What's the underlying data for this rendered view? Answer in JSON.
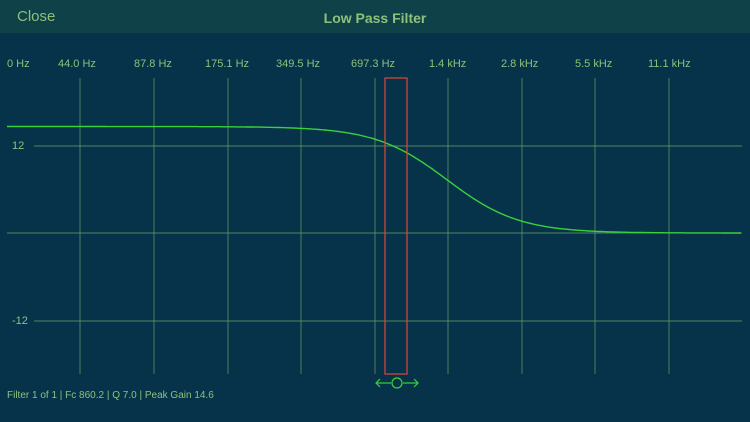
{
  "header": {
    "close_label": "Close",
    "title": "Low Pass Filter"
  },
  "freq_axis": {
    "labels": [
      "0 Hz",
      "44.0 Hz",
      "87.8 Hz",
      "175.1 Hz",
      "349.5 Hz",
      "697.3 Hz",
      "1.4 kHz",
      "2.8 kHz",
      "5.5 kHz",
      "11.1 kHz"
    ]
  },
  "gain_axis": {
    "labels": [
      "12",
      "-12"
    ],
    "range_db": [
      -24,
      24
    ]
  },
  "filter": {
    "type": "low-pass",
    "cutoff_hz": 860.2,
    "q": 7.0,
    "peak_gain_db": 14.6,
    "passband_gain_db": 14.6,
    "stopband_gain_db": 0
  },
  "status": {
    "text": "Filter 1 of 1 | Fc 860.2 | Q 7.0 | Peak Gain 14.6"
  },
  "colors": {
    "background": "#07334a",
    "header": "#0f4148",
    "text": "#8ec07c",
    "grid": "#6f9f66",
    "curve": "#39d23a",
    "marker": "#e0453a",
    "handle": "#39d23a"
  },
  "icons": {
    "cutoff_handle": "left-right-arrow-handle-icon"
  }
}
